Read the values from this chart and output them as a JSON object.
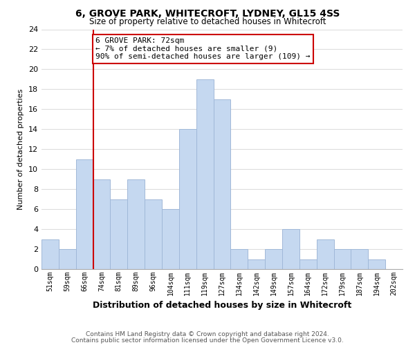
{
  "title": "6, GROVE PARK, WHITECROFT, LYDNEY, GL15 4SS",
  "subtitle": "Size of property relative to detached houses in Whitecroft",
  "xlabel": "Distribution of detached houses by size in Whitecroft",
  "ylabel": "Number of detached properties",
  "footer_line1": "Contains HM Land Registry data © Crown copyright and database right 2024.",
  "footer_line2": "Contains public sector information licensed under the Open Government Licence v3.0.",
  "bin_labels": [
    "51sqm",
    "59sqm",
    "66sqm",
    "74sqm",
    "81sqm",
    "89sqm",
    "96sqm",
    "104sqm",
    "111sqm",
    "119sqm",
    "127sqm",
    "134sqm",
    "142sqm",
    "149sqm",
    "157sqm",
    "164sqm",
    "172sqm",
    "179sqm",
    "187sqm",
    "194sqm",
    "202sqm"
  ],
  "bar_values": [
    3,
    2,
    11,
    9,
    7,
    9,
    7,
    6,
    14,
    19,
    17,
    2,
    1,
    2,
    4,
    1,
    3,
    2,
    2,
    1,
    0
  ],
  "bar_color": "#c5d8f0",
  "bar_edge_color": "#a0b8d8",
  "ylim": [
    0,
    24
  ],
  "yticks": [
    0,
    2,
    4,
    6,
    8,
    10,
    12,
    14,
    16,
    18,
    20,
    22,
    24
  ],
  "vline_x": 3,
  "vline_color": "#cc0000",
  "annotation_box_text": "6 GROVE PARK: 72sqm\n← 7% of detached houses are smaller (9)\n90% of semi-detached houses are larger (109) →",
  "annotation_box_color": "#ffffff",
  "annotation_box_edgecolor": "#cc0000",
  "grid_color": "#dddddd",
  "background_color": "#ffffff"
}
